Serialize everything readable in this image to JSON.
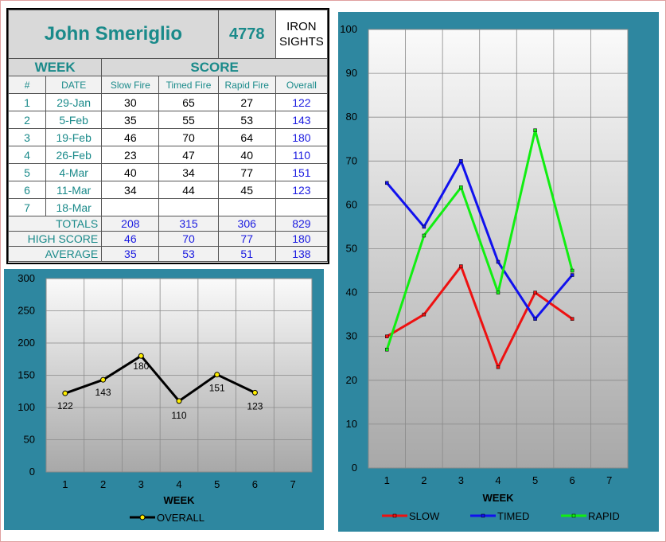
{
  "header": {
    "name": "John Smeriglio",
    "id": "4778",
    "type_line1": "IRON",
    "type_line2": "SIGHTS"
  },
  "bands": {
    "week": "WEEK",
    "score": "SCORE"
  },
  "columns": [
    "#",
    "DATE",
    "Slow Fire",
    "Timed Fire",
    "Rapid Fire",
    "Overall"
  ],
  "rows": [
    {
      "num": "1",
      "date": "29-Jan",
      "slow": "30",
      "timed": "65",
      "rapid": "27",
      "overall": "122"
    },
    {
      "num": "2",
      "date": "5-Feb",
      "slow": "35",
      "timed": "55",
      "rapid": "53",
      "overall": "143"
    },
    {
      "num": "3",
      "date": "19-Feb",
      "slow": "46",
      "timed": "70",
      "rapid": "64",
      "overall": "180"
    },
    {
      "num": "4",
      "date": "26-Feb",
      "slow": "23",
      "timed": "47",
      "rapid": "40",
      "overall": "110"
    },
    {
      "num": "5",
      "date": "4-Mar",
      "slow": "40",
      "timed": "34",
      "rapid": "77",
      "overall": "151"
    },
    {
      "num": "6",
      "date": "11-Mar",
      "slow": "34",
      "timed": "44",
      "rapid": "45",
      "overall": "123"
    },
    {
      "num": "7",
      "date": "18-Mar",
      "slow": "",
      "timed": "",
      "rapid": "",
      "overall": ""
    }
  ],
  "totals": {
    "label": "TOTALS",
    "slow": "208",
    "timed": "315",
    "rapid": "306",
    "overall": "829"
  },
  "high": {
    "label": "HIGH SCORE",
    "slow": "46",
    "timed": "70",
    "rapid": "77",
    "overall": "180"
  },
  "average": {
    "label": "AVERAGE",
    "slow": "35",
    "timed": "53",
    "rapid": "51",
    "overall": "138"
  },
  "colors": {
    "panel": "#2e87a0",
    "teal_text": "#1a8a8a",
    "blue_text": "#1a1ae0",
    "slow": "#ee1111",
    "timed": "#1111ee",
    "rapid": "#11ee11",
    "overall": "#000000",
    "marker": "#ffee00"
  },
  "chart_data": [
    {
      "type": "line",
      "x": [
        1,
        2,
        3,
        4,
        5,
        6,
        7
      ],
      "xlabel": "WEEK",
      "ylabel": "",
      "ylim": [
        0,
        300
      ],
      "yticks": [
        0,
        50,
        100,
        150,
        200,
        250,
        300
      ],
      "grid": true,
      "legend": "bottom",
      "series": [
        {
          "name": "OVERALL",
          "values": [
            122,
            143,
            180,
            110,
            151,
            123,
            null
          ],
          "data_labels": true
        }
      ]
    },
    {
      "type": "line",
      "x": [
        1,
        2,
        3,
        4,
        5,
        6,
        7
      ],
      "xlabel": "WEEK",
      "ylabel": "",
      "ylim": [
        0,
        100
      ],
      "yticks": [
        0,
        10,
        20,
        30,
        40,
        50,
        60,
        70,
        80,
        90,
        100
      ],
      "grid": true,
      "legend": "bottom",
      "series": [
        {
          "name": "SLOW",
          "values": [
            30,
            35,
            46,
            23,
            40,
            34,
            null
          ]
        },
        {
          "name": "TIMED",
          "values": [
            65,
            55,
            70,
            47,
            34,
            44,
            null
          ]
        },
        {
          "name": "RAPID",
          "values": [
            27,
            53,
            64,
            40,
            77,
            45,
            null
          ]
        }
      ]
    }
  ]
}
